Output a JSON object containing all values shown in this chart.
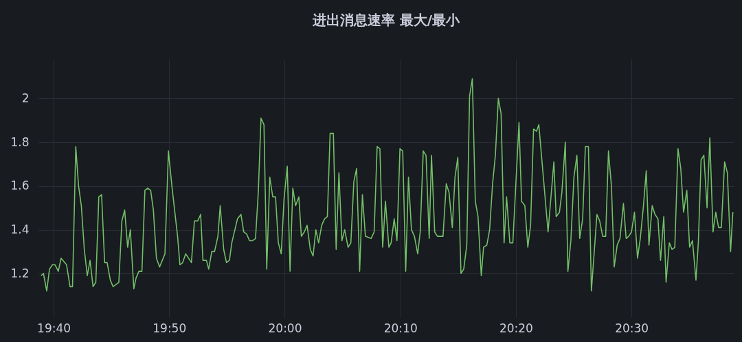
{
  "chart_data": {
    "type": "line",
    "title": "进出消息速率 最大/最小",
    "x": [
      19.6485,
      19.652,
      19.6567,
      19.6607,
      19.665,
      19.6687,
      19.6734,
      19.6774,
      19.6853,
      19.6903,
      19.6939,
      19.6986,
      19.7026,
      19.7066,
      19.7109,
      19.7152,
      19.7192,
      19.7235,
      19.7275,
      19.7318,
      19.7358,
      19.7402,
      19.7438,
      19.7484,
      19.7524,
      19.7607,
      19.7651,
      19.7691,
      19.7734,
      19.7773,
      19.7823,
      19.7856,
      19.7896,
      19.794,
      19.7983,
      19.8023,
      19.8066,
      19.8105,
      19.8149,
      19.8195,
      19.8272,
      19.8322,
      19.8372,
      19.8454,
      19.8488,
      19.8528,
      19.8571,
      19.8654,
      19.8697,
      19.8743,
      19.8787,
      19.882,
      19.887,
      19.8903,
      19.8947,
      19.8987,
      19.9036,
      19.9069,
      19.9119,
      19.9159,
      19.9202,
      19.9236,
      19.9318,
      19.9368,
      19.9408,
      19.9451,
      19.9491,
      19.9535,
      19.9578,
      19.9618,
      19.9657,
      19.97,
      19.974,
      19.9784,
      19.9827,
      19.9867,
      19.9907,
      19.9949,
      19.9989,
      20.0036,
      20.0076,
      20.0116,
      20.0156,
      20.0203,
      20.0239,
      20.0282,
      20.0322,
      20.0368,
      20.0408,
      20.0448,
      20.0488,
      20.0532,
      20.0575,
      20.0614,
      20.0654,
      20.0701,
      20.0741,
      20.0781,
      20.0824,
      20.0864,
      20.0913,
      20.0953,
      20.0996,
      20.1036,
      20.108,
      20.112,
      20.1163,
      20.1245,
      20.1289,
      20.1332,
      20.1372,
      20.1412,
      20.1452,
      20.1501,
      20.1534,
      20.1578,
      20.1618,
      20.1661,
      20.1701,
      20.1744,
      20.1784,
      20.1827,
      20.187,
      20.1917,
      20.1953,
      20.1997,
      20.2037,
      20.2083,
      20.2116,
      20.2162,
      20.2202,
      20.2282,
      20.2329,
      20.2369,
      20.2416,
      20.2455,
      20.2495,
      20.2541,
      20.2581,
      20.2625,
      20.2665,
      20.2705,
      20.2748,
      20.2787,
      20.2834,
      20.2867,
      20.2914,
      20.2954,
      20.2997,
      20.3037,
      20.308,
      20.312,
      20.3163,
      20.3199,
      20.3246,
      20.3289,
      20.3378,
      20.3415,
      20.3462,
      20.3505,
      20.3545,
      20.3588,
      20.3631,
      20.3664,
      20.3797,
      20.3881,
      20.3914,
      20.3961,
      20.3996,
      20.4046,
      20.4083,
      20.4126,
      20.417,
      20.4213,
      20.4253,
      20.4296,
      20.4335,
      20.4379,
      20.4422,
      20.4502,
      20.4542,
      20.4585,
      20.4628,
      20.4668,
      20.4711,
      20.4751,
      20.4794,
      20.4834,
      20.4884,
      20.4923,
      20.496,
      20.5,
      20.5043,
      20.5087,
      20.5127,
      20.5173,
      20.5213,
      20.5252,
      20.5299,
      20.5339,
      20.5382,
      20.5419,
      20.5466,
      20.5499,
      20.5546,
      20.5585,
      20.5625,
      20.5671,
      20.5711,
      20.5751,
      20.5798,
      20.5838,
      20.588,
      20.593,
      20.5964,
      20.6004,
      20.6044,
      20.609,
      20.613,
      20.6176,
      20.6216,
      20.6256,
      20.6296,
      20.6343,
      20.6383,
      20.6429,
      20.6462
    ],
    "series": [
      {
        "color": "#73bf69",
        "values": [
          1.19,
          1.2,
          1.12,
          1.22,
          1.24,
          1.24,
          1.21,
          1.27,
          1.24,
          1.14,
          1.14,
          1.78,
          1.6,
          1.51,
          1.31,
          1.19,
          1.26,
          1.14,
          1.16,
          1.55,
          1.56,
          1.25,
          1.25,
          1.17,
          1.14,
          1.16,
          1.44,
          1.49,
          1.32,
          1.4,
          1.13,
          1.18,
          1.21,
          1.21,
          1.58,
          1.59,
          1.58,
          1.49,
          1.27,
          1.23,
          1.29,
          1.76,
          1.6,
          1.37,
          1.24,
          1.25,
          1.29,
          1.25,
          1.44,
          1.44,
          1.47,
          1.26,
          1.26,
          1.22,
          1.3,
          1.3,
          1.37,
          1.51,
          1.31,
          1.25,
          1.26,
          1.34,
          1.45,
          1.47,
          1.39,
          1.38,
          1.35,
          1.35,
          1.36,
          1.57,
          1.91,
          1.88,
          1.22,
          1.64,
          1.55,
          1.55,
          1.34,
          1.29,
          1.54,
          1.69,
          1.21,
          1.59,
          1.51,
          1.55,
          1.37,
          1.39,
          1.42,
          1.31,
          1.28,
          1.4,
          1.34,
          1.42,
          1.45,
          1.46,
          1.84,
          1.84,
          1.31,
          1.66,
          1.35,
          1.4,
          1.32,
          1.34,
          1.62,
          1.68,
          1.21,
          1.56,
          1.37,
          1.36,
          1.39,
          1.78,
          1.77,
          1.32,
          1.53,
          1.32,
          1.34,
          1.45,
          1.35,
          1.77,
          1.76,
          1.21,
          1.64,
          1.4,
          1.37,
          1.29,
          1.39,
          1.76,
          1.74,
          1.36,
          1.74,
          1.39,
          1.37,
          1.37,
          1.61,
          1.57,
          1.41,
          1.64,
          1.73,
          1.2,
          1.22,
          1.33,
          2.01,
          2.09,
          1.53,
          1.46,
          1.19,
          1.32,
          1.33,
          1.4,
          1.61,
          1.74,
          2.0,
          1.93,
          1.34,
          1.55,
          1.34,
          1.34,
          1.89,
          1.53,
          1.51,
          1.32,
          1.42,
          1.86,
          1.85,
          1.88,
          1.39,
          1.71,
          1.46,
          1.48,
          1.57,
          1.8,
          1.21,
          1.35,
          1.64,
          1.74,
          1.36,
          1.45,
          1.78,
          1.78,
          1.12,
          1.47,
          1.44,
          1.37,
          1.37,
          1.76,
          1.6,
          1.23,
          1.33,
          1.36,
          1.52,
          1.36,
          1.37,
          1.39,
          1.48,
          1.27,
          1.36,
          1.51,
          1.67,
          1.33,
          1.51,
          1.47,
          1.45,
          1.26,
          1.46,
          1.16,
          1.34,
          1.31,
          1.32,
          1.77,
          1.68,
          1.48,
          1.58,
          1.32,
          1.35,
          1.17,
          1.34,
          1.72,
          1.74,
          1.5,
          1.82,
          1.39,
          1.48,
          1.41,
          1.41,
          1.71,
          1.66,
          1.3,
          1.48
        ]
      }
    ],
    "xlim": [
      19.6448,
      20.6475
    ],
    "xticks": [
      {
        "value": 19.6667,
        "label": "19:40"
      },
      {
        "value": 19.8333,
        "label": "19:50"
      },
      {
        "value": 20.0,
        "label": "20:00"
      },
      {
        "value": 20.1667,
        "label": "20:10"
      },
      {
        "value": 20.3333,
        "label": "20:20"
      },
      {
        "value": 20.5,
        "label": "20:30"
      }
    ],
    "ylim": [
      1.0,
      2.18
    ],
    "yticks": [
      1.2,
      1.4,
      1.6,
      1.8,
      2
    ],
    "grid": true,
    "marker": "none",
    "line_style": "solid"
  }
}
